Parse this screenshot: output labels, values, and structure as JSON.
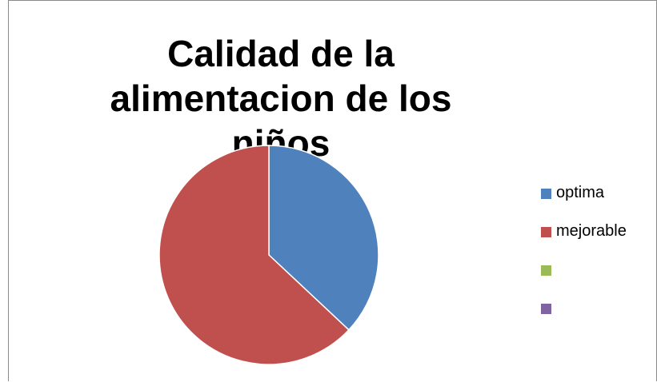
{
  "chart_data": {
    "type": "pie",
    "title": "Calidad de la alimentacion de los niños",
    "legend_position": "right",
    "slices": [
      {
        "label": "optima",
        "value": 37,
        "color": "#4F81BD"
      },
      {
        "label": "mejorable",
        "value": 63,
        "color": "#C0504D"
      },
      {
        "label": "",
        "value": 0,
        "color": "#9BBB59"
      },
      {
        "label": "",
        "value": 0,
        "color": "#8064A2"
      }
    ]
  }
}
